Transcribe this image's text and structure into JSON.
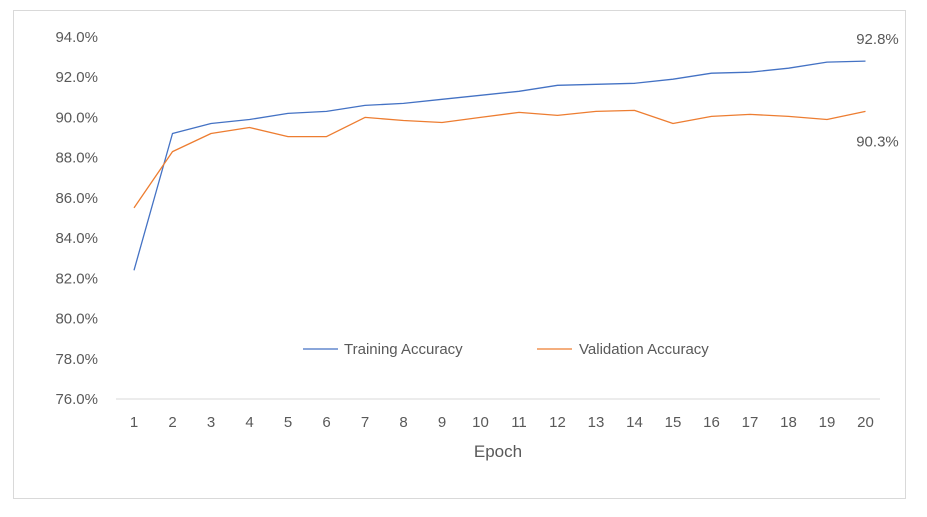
{
  "chart_data": {
    "type": "line",
    "title": "",
    "xlabel": "Epoch",
    "ylabel": "",
    "x": [
      1,
      2,
      3,
      4,
      5,
      6,
      7,
      8,
      9,
      10,
      11,
      12,
      13,
      14,
      15,
      16,
      17,
      18,
      19,
      20
    ],
    "ylim": [
      76.0,
      94.0
    ],
    "ytick_labels": [
      "76.0%",
      "78.0%",
      "80.0%",
      "82.0%",
      "84.0%",
      "86.0%",
      "88.0%",
      "90.0%",
      "92.0%",
      "94.0%"
    ],
    "grid": false,
    "legend_position": "center",
    "series": [
      {
        "name": "Training Accuracy",
        "color": "#4472C4",
        "values": [
          82.4,
          89.2,
          89.7,
          89.9,
          90.2,
          90.3,
          90.6,
          90.7,
          90.9,
          91.1,
          91.3,
          91.6,
          91.65,
          91.7,
          91.9,
          92.2,
          92.25,
          92.45,
          92.75,
          92.8
        ],
        "end_label": "92.8%"
      },
      {
        "name": "Validation Accuracy",
        "color": "#ED7D31",
        "values": [
          85.5,
          88.3,
          89.2,
          89.5,
          89.05,
          89.05,
          90.0,
          89.85,
          89.75,
          90.0,
          90.25,
          90.1,
          90.3,
          90.35,
          89.7,
          90.05,
          90.15,
          90.05,
          89.9,
          90.3
        ],
        "end_label": "90.3%"
      }
    ]
  }
}
